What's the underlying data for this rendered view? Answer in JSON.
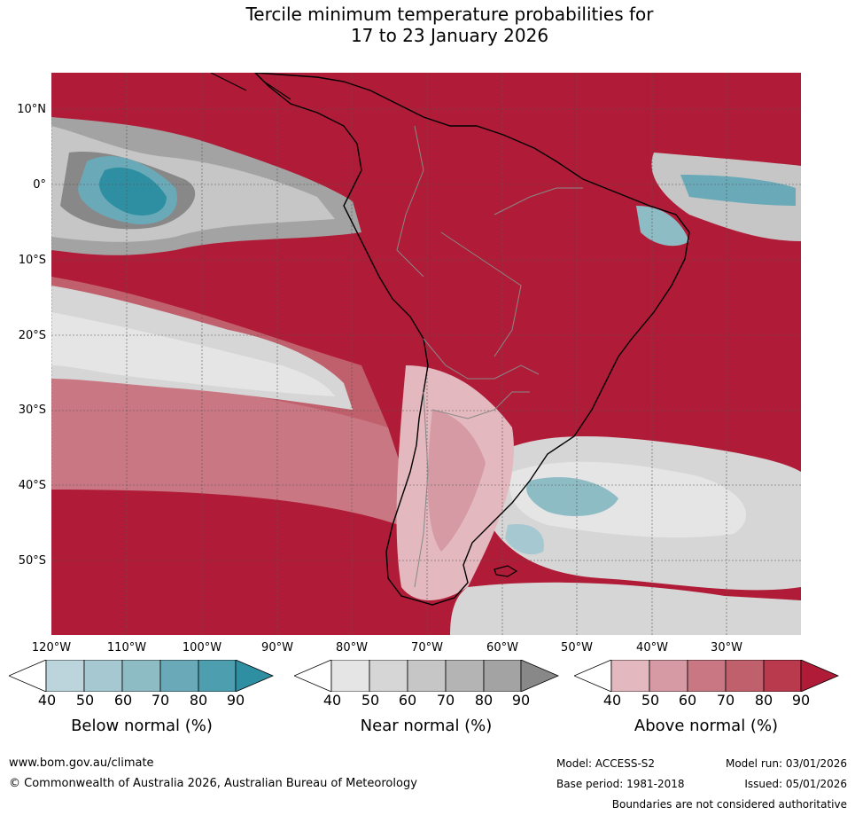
{
  "title": {
    "line1": "Tercile minimum temperature probabilities for",
    "line2": "17 to 23 January 2026"
  },
  "map": {
    "latitude_labels": [
      "10°N",
      "0°",
      "10°S",
      "20°S",
      "30°S",
      "40°S",
      "50°S"
    ],
    "longitude_labels": [
      "120°W",
      "110°W",
      "100°W",
      "90°W",
      "80°W",
      "70°W",
      "60°W",
      "50°W",
      "40°W",
      "30°W"
    ],
    "land_outline_color": "#000000",
    "border_color": "#888888"
  },
  "legends": [
    {
      "title": "Below normal (%)",
      "ticks": [
        "40",
        "50",
        "60",
        "70",
        "80",
        "90"
      ],
      "colors": [
        "#ffffff",
        "#bcd5dc",
        "#a6c8d0",
        "#8ebcc5",
        "#6aaab8",
        "#4d9eae",
        "#2e8fa3"
      ]
    },
    {
      "title": "Near normal (%)",
      "ticks": [
        "40",
        "50",
        "60",
        "70",
        "80",
        "90"
      ],
      "colors": [
        "#ffffff",
        "#e5e5e5",
        "#d6d6d6",
        "#c6c6c6",
        "#b4b4b4",
        "#a3a3a3",
        "#888888"
      ]
    },
    {
      "title": "Above normal (%)",
      "ticks": [
        "40",
        "50",
        "60",
        "70",
        "80",
        "90"
      ],
      "colors": [
        "#ffffff",
        "#e3b8be",
        "#d59aa3",
        "#c97883",
        "#c0606c",
        "#b93a4d",
        "#b01c37"
      ]
    }
  ],
  "footer": {
    "website": "www.bom.gov.au/climate",
    "copyright": "© Commonwealth of Australia 2026, Australian Bureau of Meteorology",
    "model": "Model: ACCESS-S2",
    "base_period": "Base period: 1981-2018",
    "model_run": "Model run: 03/01/2026",
    "issued": "Issued: 05/01/2026",
    "disclaimer": "Boundaries are not considered authoritative"
  }
}
